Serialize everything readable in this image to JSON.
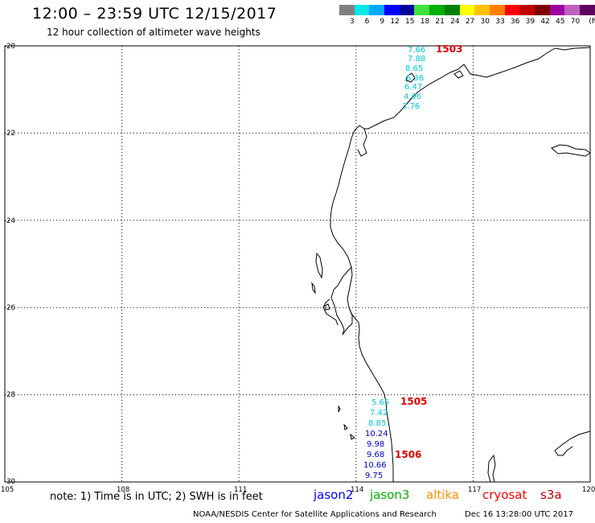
{
  "header": {
    "title": "12:00 – 23:59 UTC 12/15/2017",
    "subtitle": "12 hour collection of altimeter wave heights"
  },
  "legend": {
    "colors": [
      "#808080",
      "#00e8e8",
      "#00a8ff",
      "#0000ff",
      "#0000a0",
      "#40e040",
      "#00b000",
      "#008000",
      "#ffff00",
      "#ffc000",
      "#ff8000",
      "#ff0000",
      "#c00000",
      "#800000",
      "#a000a0",
      "#c060c0",
      "#600060",
      "#000000"
    ],
    "labels": [
      "3",
      "6",
      "9",
      "12",
      "15",
      "18",
      "21",
      "24",
      "27",
      "30",
      "33",
      "36",
      "39",
      "42",
      "45",
      "70",
      "(ft)"
    ]
  },
  "axes": {
    "lon_labels": [
      "105",
      "108",
      "111",
      "114",
      "117",
      "120"
    ],
    "lat_labels": [
      "-20",
      "-22",
      "-24",
      "-26",
      "-28",
      "-30"
    ]
  },
  "passes": [
    {
      "id": "1503",
      "label": "1503",
      "color": "#e00000",
      "values": [
        {
          "text": "7.66",
          "color": "#00c8e0"
        },
        {
          "text": "7.88",
          "color": "#00c8e0"
        },
        {
          "text": "8.65",
          "color": "#00c8e0"
        },
        {
          "text": "6.36",
          "color": "#00c8e0"
        },
        {
          "text": "6.47",
          "color": "#00c8e0"
        },
        {
          "text": "4.06",
          "color": "#00c8e0"
        },
        {
          "text": "3.76",
          "color": "#00c8e0"
        }
      ]
    },
    {
      "id": "1505",
      "label": "1505",
      "color": "#e00000",
      "values": [
        {
          "text": "5.65",
          "color": "#00c8e0"
        },
        {
          "text": "7.42",
          "color": "#00c8e0"
        },
        {
          "text": "8.85",
          "color": "#00c8e0"
        },
        {
          "text": "10.24",
          "color": "#0000c0"
        },
        {
          "text": "9.98",
          "color": "#0000c0"
        }
      ]
    },
    {
      "id": "1506",
      "label": "1506",
      "color": "#e00000",
      "values": [
        {
          "text": "9.68",
          "color": "#0000c0"
        },
        {
          "text": "10.66",
          "color": "#0000c0"
        },
        {
          "text": "9.75",
          "color": "#0000c0"
        }
      ]
    }
  ],
  "footer": {
    "note": "note: 1) Time is in UTC; 2) SWH is in feet",
    "satellites": [
      {
        "name": "jason2",
        "color": "#0000ff"
      },
      {
        "name": "jason3",
        "color": "#00b000"
      },
      {
        "name": "altika",
        "color": "#ff9000"
      },
      {
        "name": "cryosat",
        "color": "#ff0000"
      },
      {
        "name": "s3a",
        "color": "#c00000"
      }
    ],
    "credit": "NOAA/NESDIS Center for Satellite Applications and Research",
    "timestamp": "Dec 16 13:28:00 UTC 2017"
  }
}
